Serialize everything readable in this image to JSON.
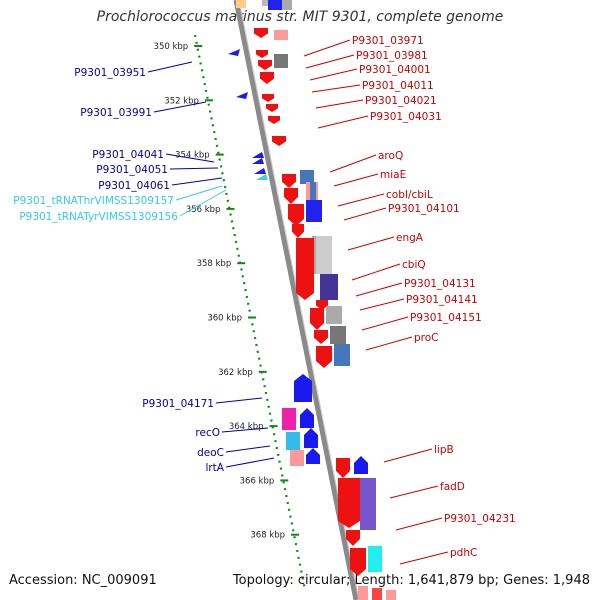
{
  "title": "Prochlorococcus marinus str. MIT 9301, complete genome",
  "footer": {
    "accession": "Accession: NC_009091",
    "summary": "Topology: circular; Length: 1,641,879 bp; Genes: 1,948"
  },
  "colors": {
    "forward_gene": "#ee1111",
    "reverse_gene": "#1a1aee",
    "trna": "#33ccee",
    "backbone": "#8a8a8a",
    "ruler": "#118811",
    "label_right": "#cc0000",
    "label_left": "#0000aa"
  },
  "ruler_ticks": [
    {
      "kbp": 350,
      "label": "350 kbp"
    },
    {
      "kbp": 352,
      "label": "352 kbp"
    },
    {
      "kbp": 354,
      "label": "354 kbp"
    },
    {
      "kbp": 356,
      "label": "356 kbp"
    },
    {
      "kbp": 358,
      "label": "358 kbp"
    },
    {
      "kbp": 360,
      "label": "360 kbp"
    },
    {
      "kbp": 362,
      "label": "362 kbp"
    },
    {
      "kbp": 364,
      "label": "364 kbp"
    },
    {
      "kbp": 366,
      "label": "366 kbp"
    },
    {
      "kbp": 368,
      "label": "368 kbp"
    }
  ],
  "right_labels": [
    {
      "name": "P9301_03971"
    },
    {
      "name": "P9301_03981"
    },
    {
      "name": "P9301_04001"
    },
    {
      "name": "P9301_04011"
    },
    {
      "name": "P9301_04021"
    },
    {
      "name": "P9301_04031"
    },
    {
      "name": "aroQ"
    },
    {
      "name": "miaE"
    },
    {
      "name": "cobI/cbiL"
    },
    {
      "name": "P9301_04101"
    },
    {
      "name": "engA"
    },
    {
      "name": "cbiQ"
    },
    {
      "name": "P9301_04131"
    },
    {
      "name": "P9301_04141"
    },
    {
      "name": "P9301_04151"
    },
    {
      "name": "proC"
    },
    {
      "name": "lipB"
    },
    {
      "name": "fadD"
    },
    {
      "name": "P9301_04231"
    },
    {
      "name": "pdhC"
    }
  ],
  "left_labels": [
    {
      "name": "P9301_03951",
      "kind": "gene"
    },
    {
      "name": "P9301_03991",
      "kind": "gene"
    },
    {
      "name": "P9301_04041",
      "kind": "gene"
    },
    {
      "name": "P9301_04051",
      "kind": "gene"
    },
    {
      "name": "P9301_04061",
      "kind": "gene"
    },
    {
      "name": "P9301_tRNAThrVIMSS1309157",
      "kind": "trna"
    },
    {
      "name": "P9301_tRNATyrVIMSS1309156",
      "kind": "trna"
    },
    {
      "name": "P9301_04171",
      "kind": "gene"
    },
    {
      "name": "recO",
      "kind": "gene"
    },
    {
      "name": "deoC",
      "kind": "gene"
    },
    {
      "name": "lrtA",
      "kind": "gene"
    }
  ]
}
